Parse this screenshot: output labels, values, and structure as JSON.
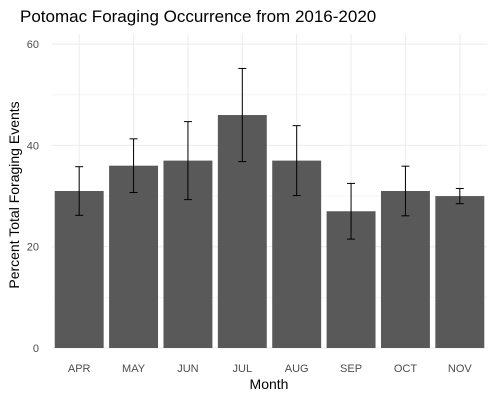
{
  "chart_data": {
    "type": "bar",
    "title": "Potomac Foraging Occurrence from 2016-2020",
    "xlabel": "Month",
    "ylabel": "Percent Total Foraging Events",
    "categories": [
      "APR",
      "MAY",
      "JUN",
      "JUL",
      "AUG",
      "SEP",
      "OCT",
      "NOV"
    ],
    "values": [
      31,
      36,
      37,
      46,
      37,
      27,
      31,
      30
    ],
    "error_low": [
      26.2,
      30.7,
      29.3,
      36.8,
      30.1,
      21.5,
      26.1,
      28.5
    ],
    "error_high": [
      35.8,
      41.3,
      44.7,
      55.2,
      43.9,
      32.5,
      35.9,
      31.5
    ],
    "ylim": [
      0,
      62
    ],
    "yticks": [
      0,
      20,
      40,
      60
    ],
    "grid": true,
    "legend": "none",
    "colors": {
      "bar": "#595959",
      "error_bar": "#000000",
      "grid": "#ebebeb",
      "background": "#ffffff"
    }
  }
}
